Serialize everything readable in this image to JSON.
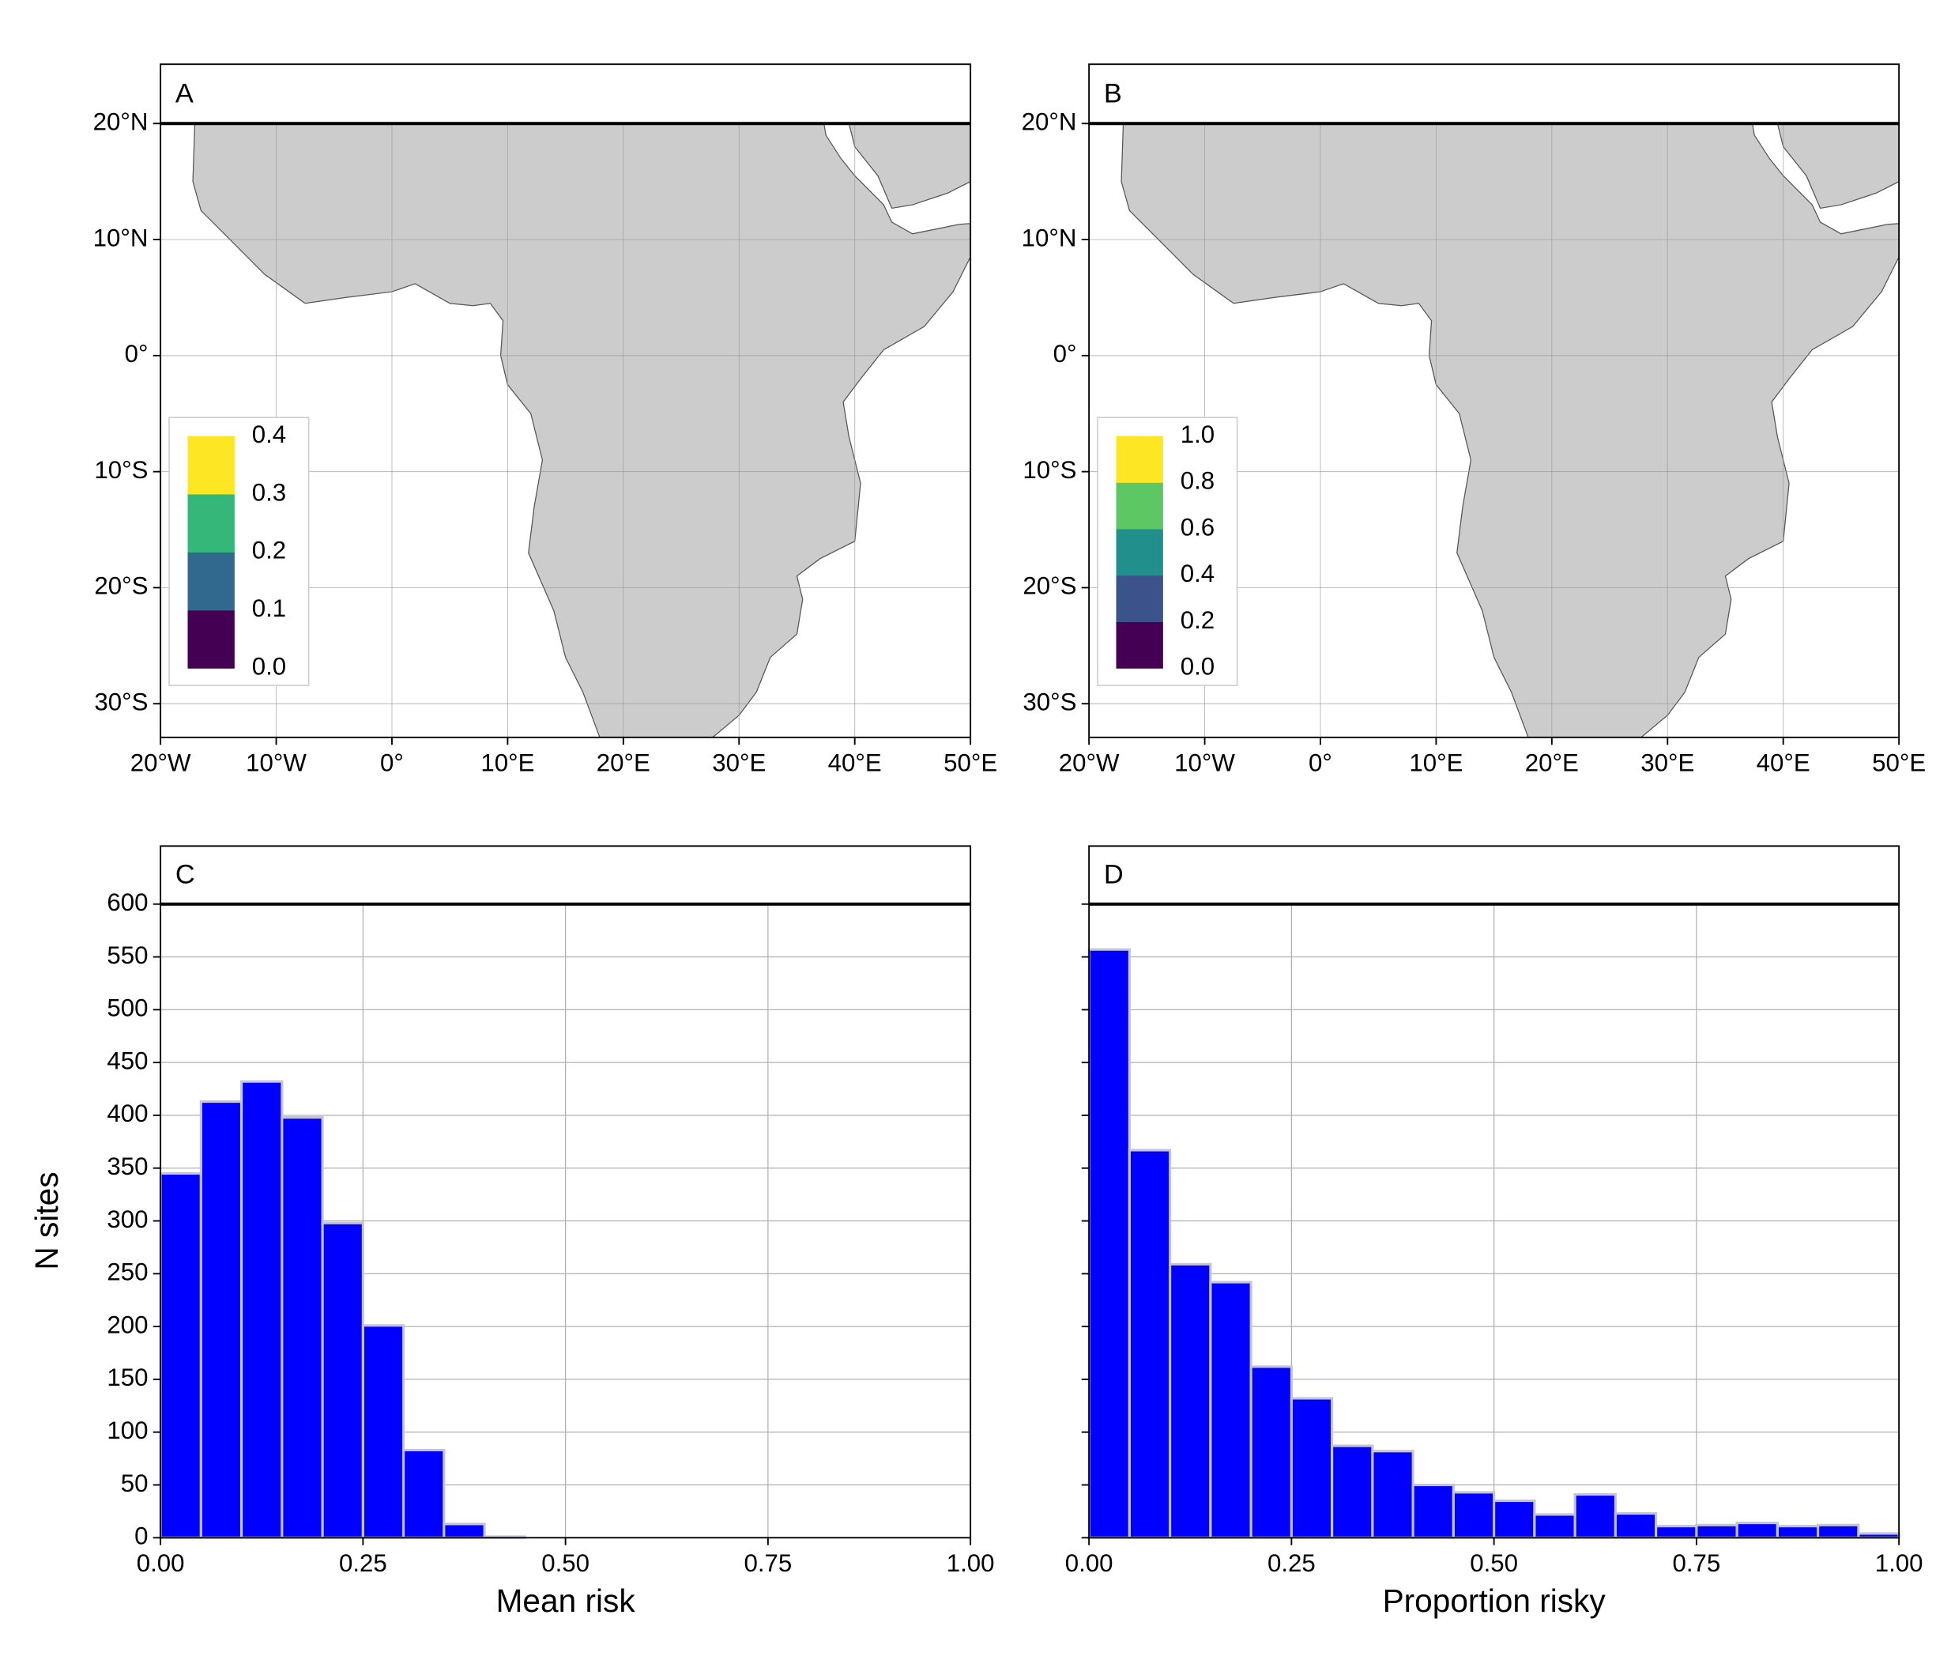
{
  "chart_data": [
    {
      "type": "map",
      "panel": "A",
      "xlim": [
        -20,
        50
      ],
      "ylim": [
        -32.9,
        20
      ],
      "xticks": [
        {
          "value": -20,
          "label": "20°W"
        },
        {
          "value": -10,
          "label": "10°W"
        },
        {
          "value": 0,
          "label": "0°"
        },
        {
          "value": 10,
          "label": "10°E"
        },
        {
          "value": 20,
          "label": "20°E"
        },
        {
          "value": 30,
          "label": "30°E"
        },
        {
          "value": 40,
          "label": "40°E"
        },
        {
          "value": 50,
          "label": "50°E"
        }
      ],
      "yticks": [
        {
          "value": 20,
          "label": "20°N"
        },
        {
          "value": 10,
          "label": "10°N"
        },
        {
          "value": 0,
          "label": "0°"
        },
        {
          "value": -10,
          "label": "10°S"
        },
        {
          "value": -20,
          "label": "20°S"
        },
        {
          "value": -30,
          "label": "30°S"
        }
      ],
      "land_color": "#cccccc",
      "grid": true,
      "legend": {
        "corner": "bottom-left",
        "breaks": [
          {
            "value": 0,
            "label": "0.0"
          },
          {
            "value": 0.1,
            "label": "0.1"
          },
          {
            "value": 0.2,
            "label": "0.2"
          },
          {
            "value": 0.3,
            "label": "0.3"
          },
          {
            "value": 0.4,
            "label": "0.4"
          }
        ],
        "colors": [
          "#440154",
          "#31688e",
          "#35b779",
          "#fde725"
        ]
      }
    },
    {
      "type": "map",
      "panel": "B",
      "xlim": [
        -20,
        50
      ],
      "ylim": [
        -32.9,
        20
      ],
      "xticks": [
        {
          "value": -20,
          "label": "20°W"
        },
        {
          "value": -10,
          "label": "10°W"
        },
        {
          "value": 0,
          "label": "0°"
        },
        {
          "value": 10,
          "label": "10°E"
        },
        {
          "value": 20,
          "label": "20°E"
        },
        {
          "value": 30,
          "label": "30°E"
        },
        {
          "value": 40,
          "label": "40°E"
        },
        {
          "value": 50,
          "label": "50°E"
        }
      ],
      "yticks": [
        {
          "value": 20,
          "label": "20°N"
        },
        {
          "value": 10,
          "label": "10°N"
        },
        {
          "value": 0,
          "label": "0°"
        },
        {
          "value": -10,
          "label": "10°S"
        },
        {
          "value": -20,
          "label": "20°S"
        },
        {
          "value": -30,
          "label": "30°S"
        }
      ],
      "land_color": "#cccccc",
      "grid": true,
      "legend": {
        "corner": "bottom-left",
        "breaks": [
          {
            "value": 0,
            "label": "0.0"
          },
          {
            "value": 0.2,
            "label": "0.2"
          },
          {
            "value": 0.4,
            "label": "0.4"
          },
          {
            "value": 0.6,
            "label": "0.6"
          },
          {
            "value": 0.8,
            "label": "0.8"
          },
          {
            "value": 1,
            "label": "1.0"
          }
        ],
        "colors": [
          "#440154",
          "#3b528b",
          "#21908c",
          "#5dc863",
          "#fde725"
        ]
      }
    },
    {
      "type": "histogram",
      "panel": "C",
      "xlabel": "Mean risk",
      "ylabel": "N sites",
      "bins": [
        0,
        0.05,
        0.1,
        0.15,
        0.2,
        0.25,
        0.3,
        0.35,
        0.4,
        0.45,
        0.5,
        0.55,
        0.6,
        0.65,
        0.7,
        0.75,
        0.8,
        0.85,
        0.9,
        0.95,
        1
      ],
      "counts": [
        345,
        413,
        432,
        398,
        298,
        201,
        83,
        13,
        1,
        0,
        0,
        0,
        0,
        0,
        0,
        0,
        0,
        0,
        0,
        0
      ],
      "color": "#0000ff",
      "edge_color": "#c4c4d8",
      "xlim": [
        0,
        1
      ],
      "ylim": [
        0,
        600
      ],
      "xticks": [
        {
          "value": 0,
          "label": "0.00"
        },
        {
          "value": 0.25,
          "label": "0.25"
        },
        {
          "value": 0.5,
          "label": "0.50"
        },
        {
          "value": 0.75,
          "label": "0.75"
        },
        {
          "value": 1,
          "label": "1.00"
        }
      ],
      "yticks": [
        0,
        50,
        100,
        150,
        200,
        250,
        300,
        350,
        400,
        450,
        500,
        550,
        600
      ],
      "ytick_labels": true,
      "grid": true
    },
    {
      "type": "histogram",
      "panel": "D",
      "xlabel": "Proportion risky",
      "bins": [
        0,
        0.05,
        0.1,
        0.15,
        0.2,
        0.25,
        0.3,
        0.35,
        0.4,
        0.45,
        0.5,
        0.55,
        0.6,
        0.65,
        0.7,
        0.75,
        0.8,
        0.85,
        0.9,
        0.95,
        1
      ],
      "counts": [
        557,
        367,
        259,
        242,
        162,
        132,
        87,
        82,
        50,
        43,
        35,
        22,
        41,
        23,
        11,
        12,
        14,
        11,
        12,
        4
      ],
      "color": "#0000ff",
      "edge_color": "#c4c4d8",
      "xlim": [
        0,
        1
      ],
      "ylim": [
        0,
        600
      ],
      "xticks": [
        {
          "value": 0,
          "label": "0.00"
        },
        {
          "value": 0.25,
          "label": "0.25"
        },
        {
          "value": 0.5,
          "label": "0.50"
        },
        {
          "value": 0.75,
          "label": "0.75"
        },
        {
          "value": 1,
          "label": "1.00"
        }
      ],
      "yticks": [
        0,
        50,
        100,
        150,
        200,
        250,
        300,
        350,
        400,
        450,
        500,
        550,
        600
      ],
      "ytick_labels": false,
      "grid": true
    }
  ]
}
